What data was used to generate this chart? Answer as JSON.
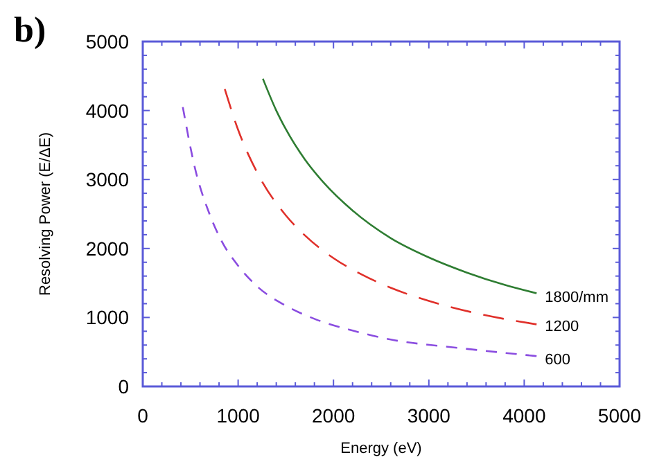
{
  "chart_data": {
    "type": "line",
    "title": "b)",
    "xlabel": "Energy  (eV)",
    "ylabel": "Resolving Power  (E/ΔE)",
    "xlim": [
      0,
      5000
    ],
    "ylim": [
      0,
      5000
    ],
    "xticks": [
      0,
      {
        "value": 200,
        "label": null
      },
      {
        "value": 400,
        "label": null
      },
      {
        "value": 600,
        "label": null
      },
      {
        "value": 800,
        "label": null
      },
      1000,
      {
        "value": 1200,
        "label": null
      },
      {
        "value": 1400,
        "label": null
      },
      {
        "value": 1600,
        "label": null
      },
      {
        "value": 1800,
        "label": null
      },
      2000,
      {
        "value": 2200,
        "label": null
      },
      {
        "value": 2400,
        "label": null
      },
      {
        "value": 2600,
        "label": null
      },
      {
        "value": 2800,
        "label": null
      },
      3000,
      {
        "value": 3200,
        "label": null
      },
      {
        "value": 3400,
        "label": null
      },
      {
        "value": 3600,
        "label": null
      },
      {
        "value": 3800,
        "label": null
      },
      4000,
      {
        "value": 4200,
        "label": null
      },
      {
        "value": 4400,
        "label": null
      },
      {
        "value": 4600,
        "label": null
      },
      {
        "value": 4800,
        "label": null
      },
      5000
    ],
    "yticks": [
      0,
      {
        "value": 200,
        "label": null
      },
      {
        "value": 400,
        "label": null
      },
      {
        "value": 600,
        "label": null
      },
      {
        "value": 800,
        "label": null
      },
      1000,
      {
        "value": 1200,
        "label": null
      },
      {
        "value": 1400,
        "label": null
      },
      {
        "value": 1600,
        "label": null
      },
      {
        "value": 1800,
        "label": null
      },
      2000,
      {
        "value": 2200,
        "label": null
      },
      {
        "value": 2400,
        "label": null
      },
      {
        "value": 2600,
        "label": null
      },
      {
        "value": 2800,
        "label": null
      },
      3000,
      {
        "value": 3200,
        "label": null
      },
      {
        "value": 3400,
        "label": null
      },
      {
        "value": 3600,
        "label": null
      },
      {
        "value": 3800,
        "label": null
      },
      4000,
      {
        "value": 4200,
        "label": null
      },
      {
        "value": 4400,
        "label": null
      },
      {
        "value": 4600,
        "label": null
      },
      {
        "value": 4800,
        "label": null
      },
      5000
    ],
    "grid": false,
    "marker": "none",
    "series": [
      {
        "name": "1800/mm",
        "color": "#2e7d32",
        "line_style": "solid",
        "x": [
          1260,
          1400,
          1500,
          1700,
          1900,
          2200,
          2600,
          3000,
          3400,
          3800,
          4130
        ],
        "values": [
          4460,
          4000,
          3730,
          3290,
          2950,
          2550,
          2150,
          1870,
          1650,
          1470,
          1350
        ]
      },
      {
        "name": "1200",
        "color": "#e0302a",
        "line_style": "dashed",
        "x": [
          860,
          1000,
          1200,
          1500,
          1700,
          2000,
          2300,
          2600,
          3000,
          3500,
          4130
        ],
        "values": [
          4310,
          3720,
          3100,
          2480,
          2190,
          1860,
          1620,
          1430,
          1240,
          1060,
          900
        ]
      },
      {
        "name": "600",
        "color": "#8a4ce0",
        "line_style": "dashed",
        "x": [
          420,
          550,
          700,
          830,
          1000,
          1200,
          1500,
          1800,
          2200,
          2600,
          3300,
          4130
        ],
        "values": [
          4050,
          3150,
          2500,
          2100,
          1750,
          1450,
          1170,
          980,
          810,
          680,
          560,
          440
        ]
      }
    ]
  }
}
